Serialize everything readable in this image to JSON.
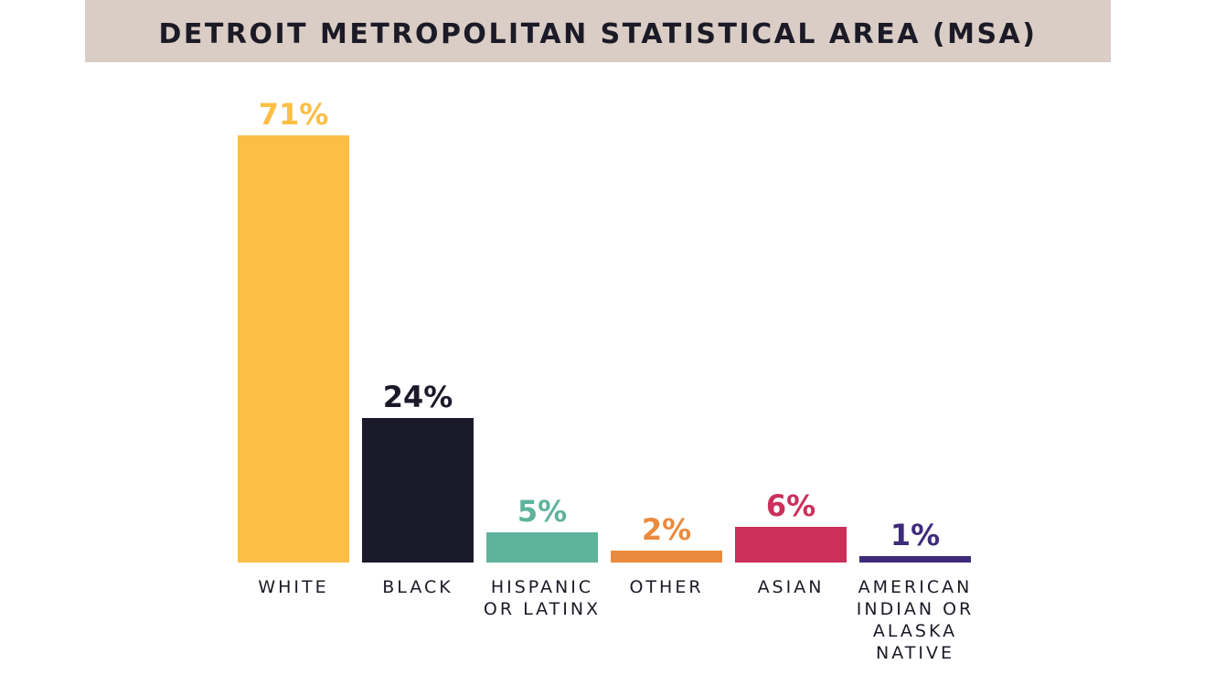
{
  "chart_data": {
    "type": "bar",
    "title": "DETROIT METROPOLITAN STATISTICAL AREA (MSA)",
    "categories": [
      "WHITE",
      "BLACK",
      "HISPANIC OR LATINX",
      "OTHER",
      "ASIAN",
      "AMERICAN INDIAN OR ALASKA NATIVE"
    ],
    "values": [
      71,
      24,
      5,
      2,
      6,
      1
    ],
    "value_labels": [
      "71%",
      "24%",
      "5%",
      "2%",
      "6%",
      "1%"
    ],
    "colors": [
      "#fdbe45",
      "#1b1a2a",
      "#5fb39b",
      "#ea8a3e",
      "#cb2f5a",
      "#3e2b7a"
    ]
  }
}
